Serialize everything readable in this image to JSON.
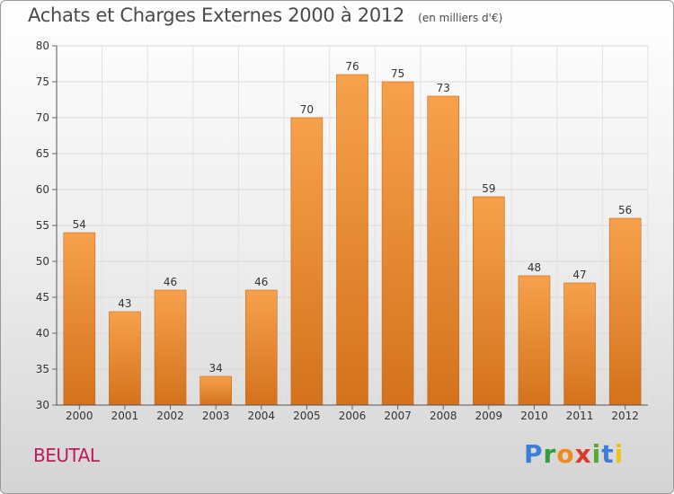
{
  "header": {
    "title": "Achats et Charges Externes 2000 à 2012",
    "unit": "(en milliers d'€)"
  },
  "footer": {
    "place": "BEUTAL",
    "logo_text": "Proxiti"
  },
  "colors": {
    "bar_top": "#f7a14c",
    "bar_bottom": "#d4721c",
    "place_text": "#c2185b"
  },
  "chart_data": {
    "type": "bar",
    "title": "Achats et Charges Externes 2000 à 2012",
    "subtitle": "(en milliers d'€)",
    "categories": [
      "2000",
      "2001",
      "2002",
      "2003",
      "2004",
      "2005",
      "2006",
      "2007",
      "2008",
      "2009",
      "2010",
      "2011",
      "2012"
    ],
    "values": [
      54,
      43,
      46,
      34,
      46,
      70,
      76,
      75,
      73,
      59,
      48,
      47,
      56
    ],
    "ylim": [
      30,
      80
    ],
    "yticks": [
      30,
      35,
      40,
      45,
      50,
      55,
      60,
      65,
      70,
      75,
      80
    ],
    "grid": true,
    "xlabel": "",
    "ylabel": ""
  }
}
